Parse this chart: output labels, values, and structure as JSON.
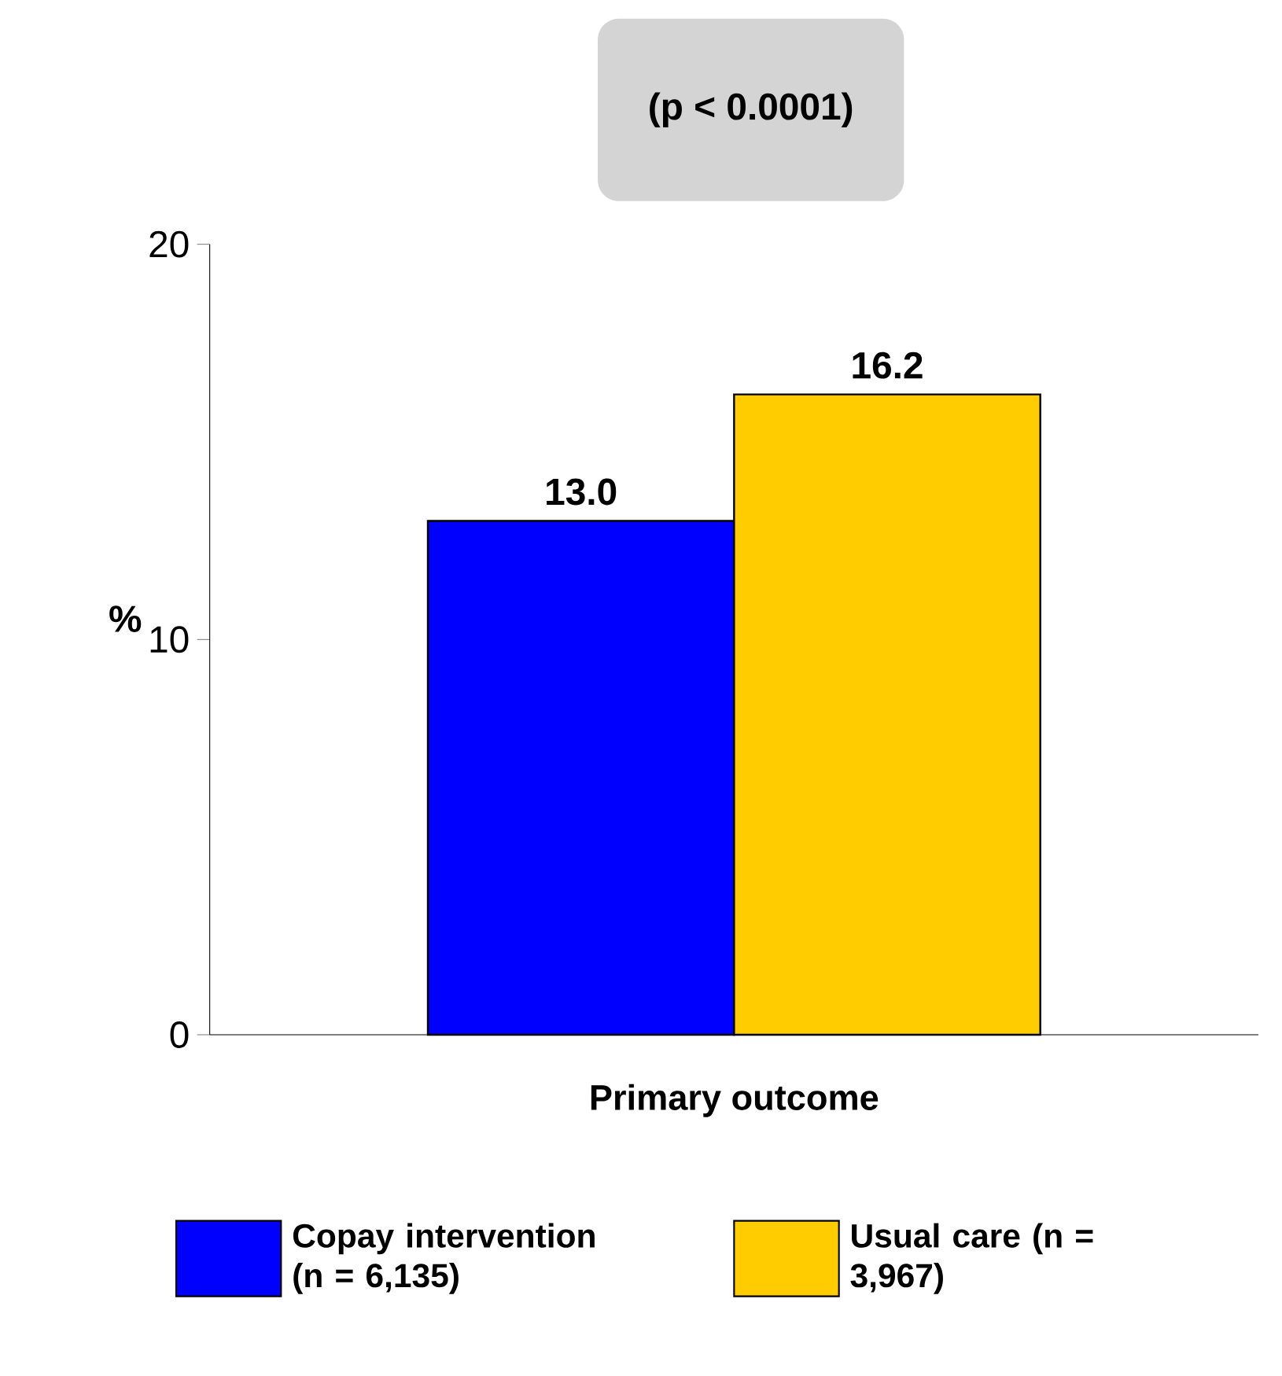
{
  "chart_data": {
    "type": "bar",
    "categories": [
      "Primary outcome"
    ],
    "series": [
      {
        "name": "Copay intervention (n = 6,135)",
        "color": "#0000ff",
        "values": [
          13.0
        ],
        "value_labels": [
          "13.0"
        ]
      },
      {
        "name": "Usual care (n = 3,967)",
        "color": "#ffcc00",
        "values": [
          16.2
        ],
        "value_labels": [
          "16.2"
        ]
      }
    ],
    "ylabel": "%",
    "ylim": [
      0,
      20
    ],
    "yticks": [
      0,
      10,
      20
    ],
    "annotations": [
      "(p < 0.0001)"
    ],
    "grid": false,
    "legend": "bottom"
  }
}
